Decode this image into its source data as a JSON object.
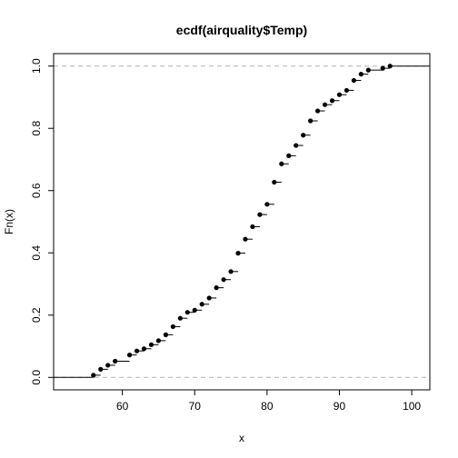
{
  "chart_data": {
    "type": "step",
    "title": "ecdf(airquality$Temp)",
    "xlabel": "x",
    "ylabel": "Fn(x)",
    "xlim": [
      50.5,
      102.5
    ],
    "ylim": [
      -0.04,
      1.04
    ],
    "x_ticks": [
      60,
      70,
      80,
      90,
      100
    ],
    "y_ticks": [
      0.0,
      0.2,
      0.4,
      0.6,
      0.8,
      1.0
    ],
    "y_tick_labels": [
      "0.0",
      "0.2",
      "0.4",
      "0.6",
      "0.8",
      "1.0"
    ],
    "reference_lines": [
      0,
      1
    ],
    "points": [
      {
        "x": 56,
        "y": 0.007
      },
      {
        "x": 57,
        "y": 0.026
      },
      {
        "x": 58,
        "y": 0.039
      },
      {
        "x": 59,
        "y": 0.052
      },
      {
        "x": 61,
        "y": 0.072
      },
      {
        "x": 62,
        "y": 0.085
      },
      {
        "x": 63,
        "y": 0.092
      },
      {
        "x": 64,
        "y": 0.105
      },
      {
        "x": 65,
        "y": 0.118
      },
      {
        "x": 66,
        "y": 0.137
      },
      {
        "x": 67,
        "y": 0.163
      },
      {
        "x": 68,
        "y": 0.19
      },
      {
        "x": 69,
        "y": 0.209
      },
      {
        "x": 70,
        "y": 0.216
      },
      {
        "x": 71,
        "y": 0.235
      },
      {
        "x": 72,
        "y": 0.255
      },
      {
        "x": 73,
        "y": 0.288
      },
      {
        "x": 74,
        "y": 0.314
      },
      {
        "x": 75,
        "y": 0.34
      },
      {
        "x": 76,
        "y": 0.399
      },
      {
        "x": 77,
        "y": 0.444
      },
      {
        "x": 78,
        "y": 0.484
      },
      {
        "x": 79,
        "y": 0.523
      },
      {
        "x": 80,
        "y": 0.556
      },
      {
        "x": 81,
        "y": 0.627
      },
      {
        "x": 82,
        "y": 0.686
      },
      {
        "x": 83,
        "y": 0.712
      },
      {
        "x": 84,
        "y": 0.745
      },
      {
        "x": 85,
        "y": 0.778
      },
      {
        "x": 86,
        "y": 0.824
      },
      {
        "x": 87,
        "y": 0.856
      },
      {
        "x": 88,
        "y": 0.876
      },
      {
        "x": 89,
        "y": 0.889
      },
      {
        "x": 90,
        "y": 0.908
      },
      {
        "x": 91,
        "y": 0.922
      },
      {
        "x": 92,
        "y": 0.954
      },
      {
        "x": 93,
        "y": 0.974
      },
      {
        "x": 94,
        "y": 0.987
      },
      {
        "x": 96,
        "y": 0.993
      },
      {
        "x": 97,
        "y": 1.0
      }
    ],
    "colors": {
      "steps": "#000000",
      "reference": "#b3b3b3",
      "frame": "#000000"
    }
  }
}
